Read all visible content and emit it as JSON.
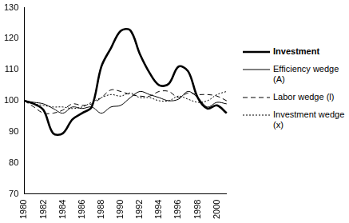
{
  "chart_data": {
    "type": "line",
    "categories": [
      "1980",
      null,
      "1982",
      null,
      "1984",
      null,
      "1986",
      null,
      "1988",
      null,
      "1990",
      null,
      "1992",
      null,
      "1994",
      null,
      "1996",
      null,
      "1998",
      null,
      "2000",
      null
    ],
    "series": [
      {
        "name": "Investment",
        "color": "#000000",
        "line_style": "solid",
        "values": [
          100,
          99,
          97,
          89.5,
          89.5,
          94,
          96,
          98,
          111,
          117,
          122.5,
          122.7,
          115,
          109,
          105,
          105.5,
          111,
          109.5,
          101,
          97.5,
          98.5,
          96
        ]
      },
      {
        "name": "Efficiency wedge (A)",
        "color": "#000000",
        "line_style": "solid",
        "values": [
          100,
          99.5,
          99,
          97.5,
          96,
          98,
          97.5,
          98,
          96,
          98,
          98.5,
          101,
          103,
          102,
          101,
          100,
          100.5,
          103,
          101,
          98,
          99.5,
          99
        ]
      },
      {
        "name": "Labor wedge (l)",
        "color": "#000000",
        "line_style": "dashed",
        "values": [
          100,
          98,
          96,
          96,
          97,
          99,
          98.5,
          99,
          101,
          103.5,
          103,
          102,
          101.5,
          101.5,
          103,
          103,
          101,
          102.5,
          102,
          102,
          101.5,
          100
        ]
      },
      {
        "name": "Investment wedge (x)",
        "color": "#000000",
        "line_style": "dotted",
        "values": [
          100,
          99,
          98.5,
          98,
          98,
          97.5,
          98,
          99.5,
          101,
          102,
          101.5,
          102.5,
          101,
          101,
          100,
          100,
          101.5,
          100.5,
          99.5,
          100,
          102,
          103
        ]
      }
    ],
    "ylim": [
      70,
      130
    ],
    "yticks": [
      70,
      80,
      90,
      100,
      110,
      120,
      130
    ],
    "grid": false,
    "legend": "right"
  }
}
